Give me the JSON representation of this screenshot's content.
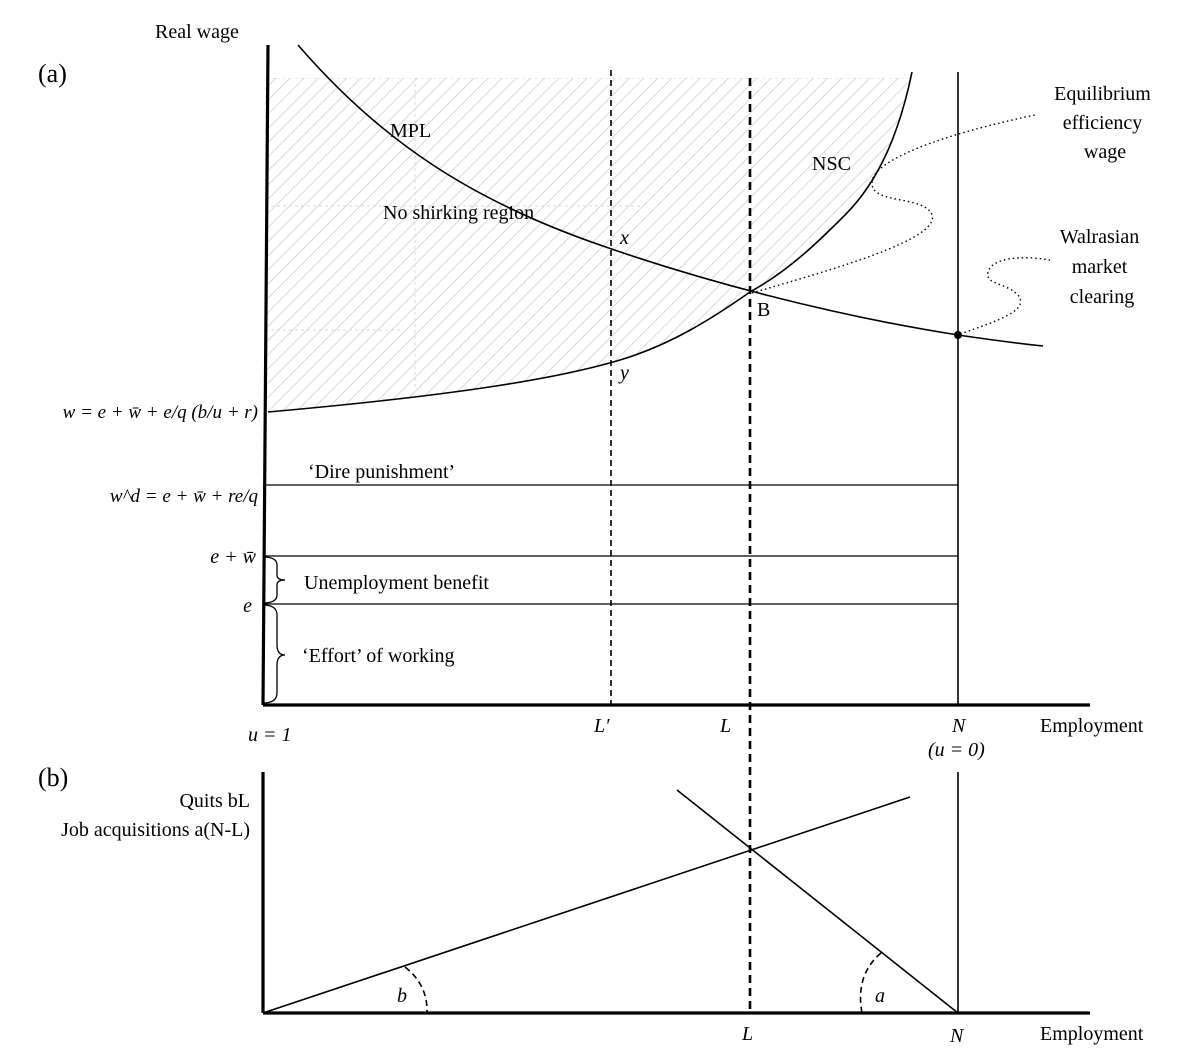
{
  "panel_a": {
    "label": "(a)",
    "y_axis_label": "Real wage",
    "x_axis_label": "Employment",
    "curves": {
      "mpl": "MPL",
      "nsc": "NSC"
    },
    "region": "No shirking region",
    "points": {
      "x": "x",
      "y": "y",
      "b": "B"
    },
    "annotations": {
      "equilibrium": [
        "Equilibrium",
        "efficiency",
        "wage"
      ],
      "walrasian": [
        "Walrasian",
        "market",
        "clearing"
      ]
    },
    "lines": {
      "dire": "‘Dire punishment’",
      "benefit": "Unemployment benefit",
      "effort": "‘Effort’ of working"
    },
    "y_labels": {
      "w_formula": "w = e + w̄ + e/q (b/u + r)",
      "wd_formula": "w^d = e + w̄ + re/q",
      "e_plus_wbar": "e + w̄",
      "e": "e"
    },
    "x_labels": {
      "u1": "u = 1",
      "lprime": "L′",
      "l": "L",
      "n": "N",
      "u0": "(u = 0)"
    }
  },
  "panel_b": {
    "label": "(b)",
    "y_axis_label_1": "Quits bL",
    "y_axis_label_2": "Job acquisitions a(N-L)",
    "x_axis_label": "Employment",
    "angles": {
      "b": "b",
      "a": "a"
    },
    "x_labels": {
      "l": "L",
      "n": "N"
    }
  }
}
